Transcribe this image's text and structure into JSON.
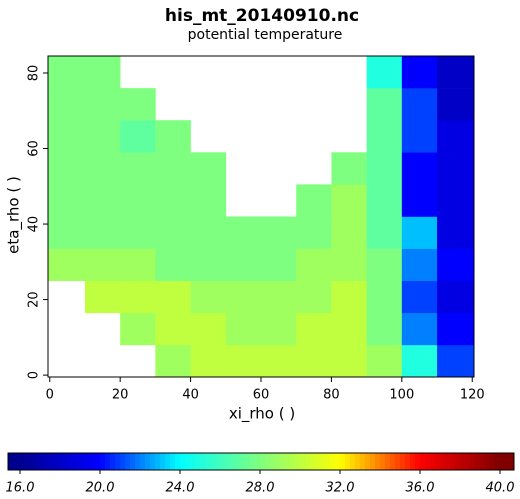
{
  "chart_data": {
    "type": "heatmap",
    "title": "his_mt_20140910.nc",
    "subtitle": "potential temperature",
    "x_label": "xi_rho ( )",
    "y_label": "eta_rho ( )",
    "xlim": [
      -0.5,
      120.5
    ],
    "ylim": [
      -0.5,
      84.5
    ],
    "xticks": [
      0,
      20,
      40,
      60,
      80,
      100,
      120
    ],
    "yticks": [
      0,
      20,
      40,
      60,
      80
    ],
    "x_bins": [
      -0.5,
      10,
      20,
      30,
      40,
      50,
      60,
      70,
      80,
      90,
      100,
      110,
      120.5
    ],
    "y_bins": [
      -0.5,
      8,
      16.5,
      25,
      33.5,
      42,
      50.5,
      59,
      67.5,
      76,
      84.5
    ],
    "values": [
      [
        null,
        null,
        null,
        29,
        30,
        30,
        30,
        30,
        30,
        29,
        25,
        21
      ],
      [
        null,
        null,
        29,
        30,
        30,
        29,
        29,
        30,
        30,
        28,
        22,
        20
      ],
      [
        null,
        30,
        30,
        30,
        29,
        29,
        29,
        29,
        30,
        28,
        21,
        19
      ],
      [
        29,
        29,
        29,
        28,
        28,
        28,
        28,
        29,
        29,
        28,
        22,
        20
      ],
      [
        28,
        28,
        28,
        28,
        28,
        28,
        28,
        28,
        29,
        27,
        23,
        19
      ],
      [
        28,
        28,
        28,
        28,
        28,
        null,
        null,
        28,
        29,
        27,
        20,
        19
      ],
      [
        28,
        28,
        28,
        28,
        28,
        null,
        null,
        null,
        28,
        27,
        20,
        19
      ],
      [
        28,
        28,
        27,
        28,
        null,
        null,
        null,
        null,
        null,
        27,
        21,
        19
      ],
      [
        28,
        28,
        28,
        null,
        null,
        null,
        null,
        null,
        null,
        27,
        21,
        18
      ],
      [
        28,
        28,
        null,
        null,
        null,
        null,
        null,
        null,
        null,
        25,
        20,
        18
      ]
    ],
    "clim": [
      16,
      40
    ],
    "colormap": [
      "#00008f",
      "#0000ff",
      "#00ffff",
      "#7fff7f",
      "#ffff00",
      "#ff0000",
      "#800000"
    ],
    "colorbar_ticks": [
      {
        "value": 16,
        "label": "16.0"
      },
      {
        "value": 20,
        "label": "20.0"
      },
      {
        "value": 24,
        "label": "24.0"
      },
      {
        "value": 28,
        "label": "28.0"
      },
      {
        "value": 32,
        "label": "32.0"
      },
      {
        "value": 36,
        "label": "36.0"
      },
      {
        "value": 40,
        "label": "40.0"
      }
    ]
  }
}
